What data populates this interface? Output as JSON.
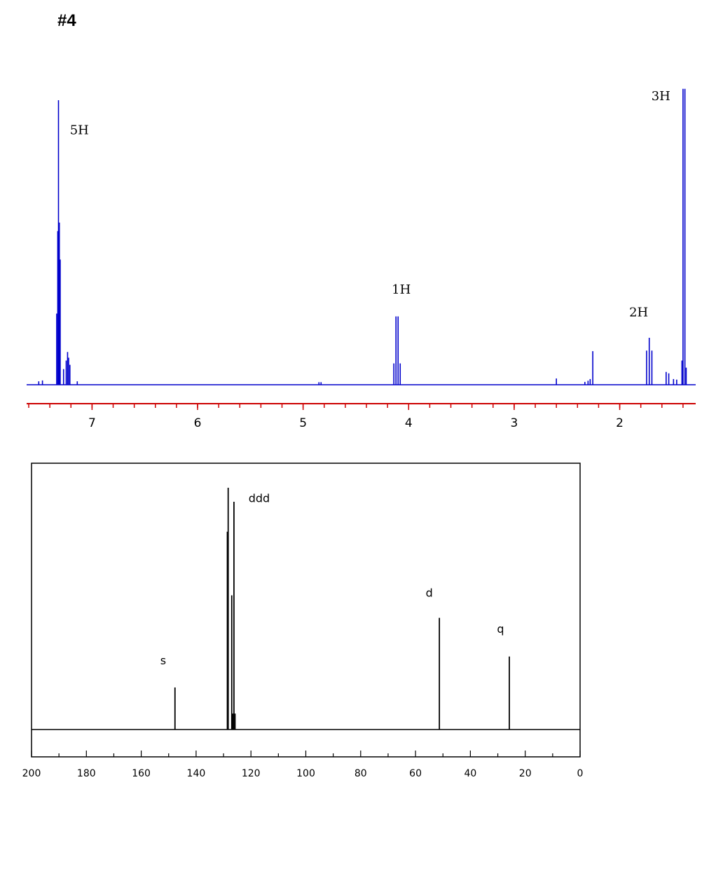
{
  "page_label": "#4",
  "colors": {
    "h_spectrum": "#0000cc",
    "h_axis": "#cc0000",
    "c_spectrum": "#000000"
  },
  "chart_data": [
    {
      "type": "line",
      "spectrum": "1H NMR",
      "x_direction": "reversed",
      "xlim": [
        7.62,
        1.28
      ],
      "x_ticks": [
        7,
        6,
        5,
        4,
        3,
        2
      ],
      "x_tick_labels": [
        "7",
        "6",
        "5",
        "4",
        "3",
        "2"
      ],
      "y_relative_max": 1.0,
      "grid": false,
      "peaks": [
        {
          "ppm": 7.505,
          "height": 0.012
        },
        {
          "ppm": 7.47,
          "height": 0.015
        },
        {
          "ppm": 7.335,
          "height": 0.25
        },
        {
          "ppm": 7.325,
          "height": 0.54
        },
        {
          "ppm": 7.318,
          "height": 1.0
        },
        {
          "ppm": 7.31,
          "height": 0.57
        },
        {
          "ppm": 7.302,
          "height": 0.44
        },
        {
          "ppm": 7.27,
          "height": 0.055
        },
        {
          "ppm": 7.245,
          "height": 0.085
        },
        {
          "ppm": 7.232,
          "height": 0.115
        },
        {
          "ppm": 7.222,
          "height": 0.095
        },
        {
          "ppm": 7.21,
          "height": 0.07
        },
        {
          "ppm": 7.14,
          "height": 0.012
        },
        {
          "ppm": 4.85,
          "height": 0.009
        },
        {
          "ppm": 4.83,
          "height": 0.009
        },
        {
          "ppm": 4.14,
          "height": 0.075
        },
        {
          "ppm": 4.12,
          "height": 0.24
        },
        {
          "ppm": 4.1,
          "height": 0.24
        },
        {
          "ppm": 4.08,
          "height": 0.075
        },
        {
          "ppm": 2.6,
          "height": 0.022
        },
        {
          "ppm": 2.33,
          "height": 0.01
        },
        {
          "ppm": 2.3,
          "height": 0.014
        },
        {
          "ppm": 2.28,
          "height": 0.02
        },
        {
          "ppm": 2.255,
          "height": 0.118
        },
        {
          "ppm": 1.745,
          "height": 0.12
        },
        {
          "ppm": 1.72,
          "height": 0.165
        },
        {
          "ppm": 1.695,
          "height": 0.12
        },
        {
          "ppm": 1.56,
          "height": 0.045
        },
        {
          "ppm": 1.535,
          "height": 0.04
        },
        {
          "ppm": 1.49,
          "height": 0.02
        },
        {
          "ppm": 1.46,
          "height": 0.018
        },
        {
          "ppm": 1.41,
          "height": 0.085
        },
        {
          "ppm": 1.4,
          "height": 1.04
        },
        {
          "ppm": 1.382,
          "height": 1.04
        },
        {
          "ppm": 1.37,
          "height": 0.06
        }
      ],
      "annotations": [
        {
          "text": "5H",
          "ppm": 7.12,
          "height": 0.88
        },
        {
          "text": "1H",
          "ppm": 4.07,
          "height": 0.32
        },
        {
          "text": "2H",
          "ppm": 1.82,
          "height": 0.24
        },
        {
          "text": "3H",
          "ppm": 1.61,
          "height": 1.0
        }
      ]
    },
    {
      "type": "line",
      "spectrum": "13C NMR",
      "x_direction": "reversed",
      "xlim": [
        200,
        0
      ],
      "x_ticks": [
        200,
        180,
        160,
        140,
        120,
        100,
        80,
        60,
        40,
        20,
        0
      ],
      "x_tick_labels": [
        "200",
        "180",
        "160",
        "140",
        "120",
        "100",
        "80",
        "60",
        "40",
        "20",
        "0"
      ],
      "y_relative_max": 1.0,
      "grid": false,
      "peaks": [
        {
          "shift": 147.7,
          "height": 0.174
        },
        {
          "shift": 128.6,
          "height": 0.818
        },
        {
          "shift": 128.3,
          "height": 1.0
        },
        {
          "shift": 127.0,
          "height": 0.555
        },
        {
          "shift": 126.6,
          "height": 0.066
        },
        {
          "shift": 126.2,
          "height": 0.942
        },
        {
          "shift": 125.8,
          "height": 0.066
        },
        {
          "shift": 51.3,
          "height": 0.462
        },
        {
          "shift": 25.8,
          "height": 0.302
        }
      ],
      "annotations": [
        {
          "text": "s",
          "shift": 152.0,
          "height": 0.27
        },
        {
          "text": "ddd",
          "shift": 117.0,
          "height": 0.94
        },
        {
          "text": "d",
          "shift": 55.0,
          "height": 0.55
        },
        {
          "text": "q",
          "shift": 29.0,
          "height": 0.4
        }
      ]
    }
  ]
}
